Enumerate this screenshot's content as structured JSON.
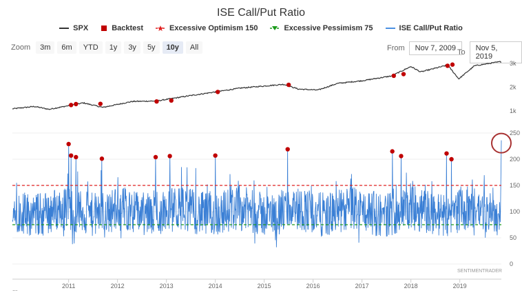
{
  "title": "ISE Call/Put Ratio",
  "legend": [
    {
      "label": "SPX",
      "color": "#333333",
      "symbol": "line"
    },
    {
      "label": "Backtest",
      "color": "#c00000",
      "symbol": "square"
    },
    {
      "label": "Excessive Optimism 150",
      "color": "#e02020",
      "symbol": "star"
    },
    {
      "label": "Excessive Pessimism 75",
      "color": "#1a9a1a",
      "symbol": "triangle-down"
    },
    {
      "label": "ISE Call/Put Ratio",
      "color": "#4a90e2",
      "symbol": "line"
    }
  ],
  "zoom": {
    "label": "Zoom",
    "buttons": [
      "3m",
      "6m",
      "YTD",
      "1y",
      "3y",
      "5y",
      "10y",
      "All"
    ],
    "active": "10y"
  },
  "range": {
    "from_label": "From",
    "from_value": "Nov 7, 2009",
    "to_label": "To",
    "to_value": "Nov 5, 2019"
  },
  "watermark": "SENTIMENTRADER",
  "x_start_label": "...",
  "colors": {
    "spx": "#333333",
    "ratio": "#3a7fd5",
    "backtest": "#c00000",
    "optimism": "#e02020",
    "pessimism": "#1a9a1a",
    "highlight": "#a83232"
  },
  "chart_data": [
    {
      "type": "line",
      "name": "spx-panel",
      "series": [
        {
          "name": "SPX",
          "x": [
            2009.85,
            2010.3,
            2010.6,
            2011.3,
            2011.7,
            2012.3,
            2012.8,
            2013.5,
            2014.0,
            2014.5,
            2015.4,
            2015.7,
            2016.1,
            2016.5,
            2017.0,
            2017.6,
            2018.0,
            2018.2,
            2018.75,
            2018.98,
            2019.3,
            2019.85
          ],
          "y": [
            1090,
            1190,
            1070,
            1340,
            1150,
            1400,
            1420,
            1650,
            1800,
            1960,
            2120,
            1920,
            1880,
            2160,
            2270,
            2470,
            2870,
            2640,
            2930,
            2350,
            2900,
            3080
          ]
        }
      ],
      "backtest_points": {
        "x": [
          2011.05,
          2011.15,
          2011.65,
          2012.8,
          2013.1,
          2014.05,
          2015.5,
          2017.65,
          2017.85,
          2018.75,
          2018.85
        ],
        "y": [
          1250,
          1290,
          1300,
          1400,
          1440,
          1800,
          2100,
          2480,
          2550,
          2900,
          2950
        ]
      },
      "y_ticks": [
        "1k",
        "2k",
        "3k"
      ],
      "ylim": [
        650,
        3400
      ]
    },
    {
      "type": "line",
      "name": "ratio-panel",
      "series": [
        {
          "name": "ISE Call/Put Ratio",
          "x_range": [
            2009.85,
            2019.85
          ],
          "note_values_sample": "dense daily series fluctuating mostly between 60 and 150, spike to 236 at end"
        }
      ],
      "backtest_points": {
        "x": [
          2011.0,
          2011.05,
          2011.15,
          2011.68,
          2012.78,
          2013.07,
          2014.0,
          2015.48,
          2017.62,
          2017.8,
          2018.73,
          2018.83
        ],
        "y": [
          229,
          207,
          204,
          201,
          204,
          206,
          207,
          219,
          215,
          206,
          211,
          200
        ]
      },
      "final_spike": {
        "x": 2019.85,
        "y": 236
      },
      "optimism_level": 150,
      "pessimism_level": 75,
      "y_ticks": [
        "0",
        "50",
        "100",
        "150",
        "200",
        "250"
      ],
      "ylim": [
        0,
        250
      ],
      "x_ticks": [
        "2011",
        "2012",
        "2013",
        "2014",
        "2015",
        "2016",
        "2017",
        "2018",
        "2019"
      ]
    }
  ]
}
